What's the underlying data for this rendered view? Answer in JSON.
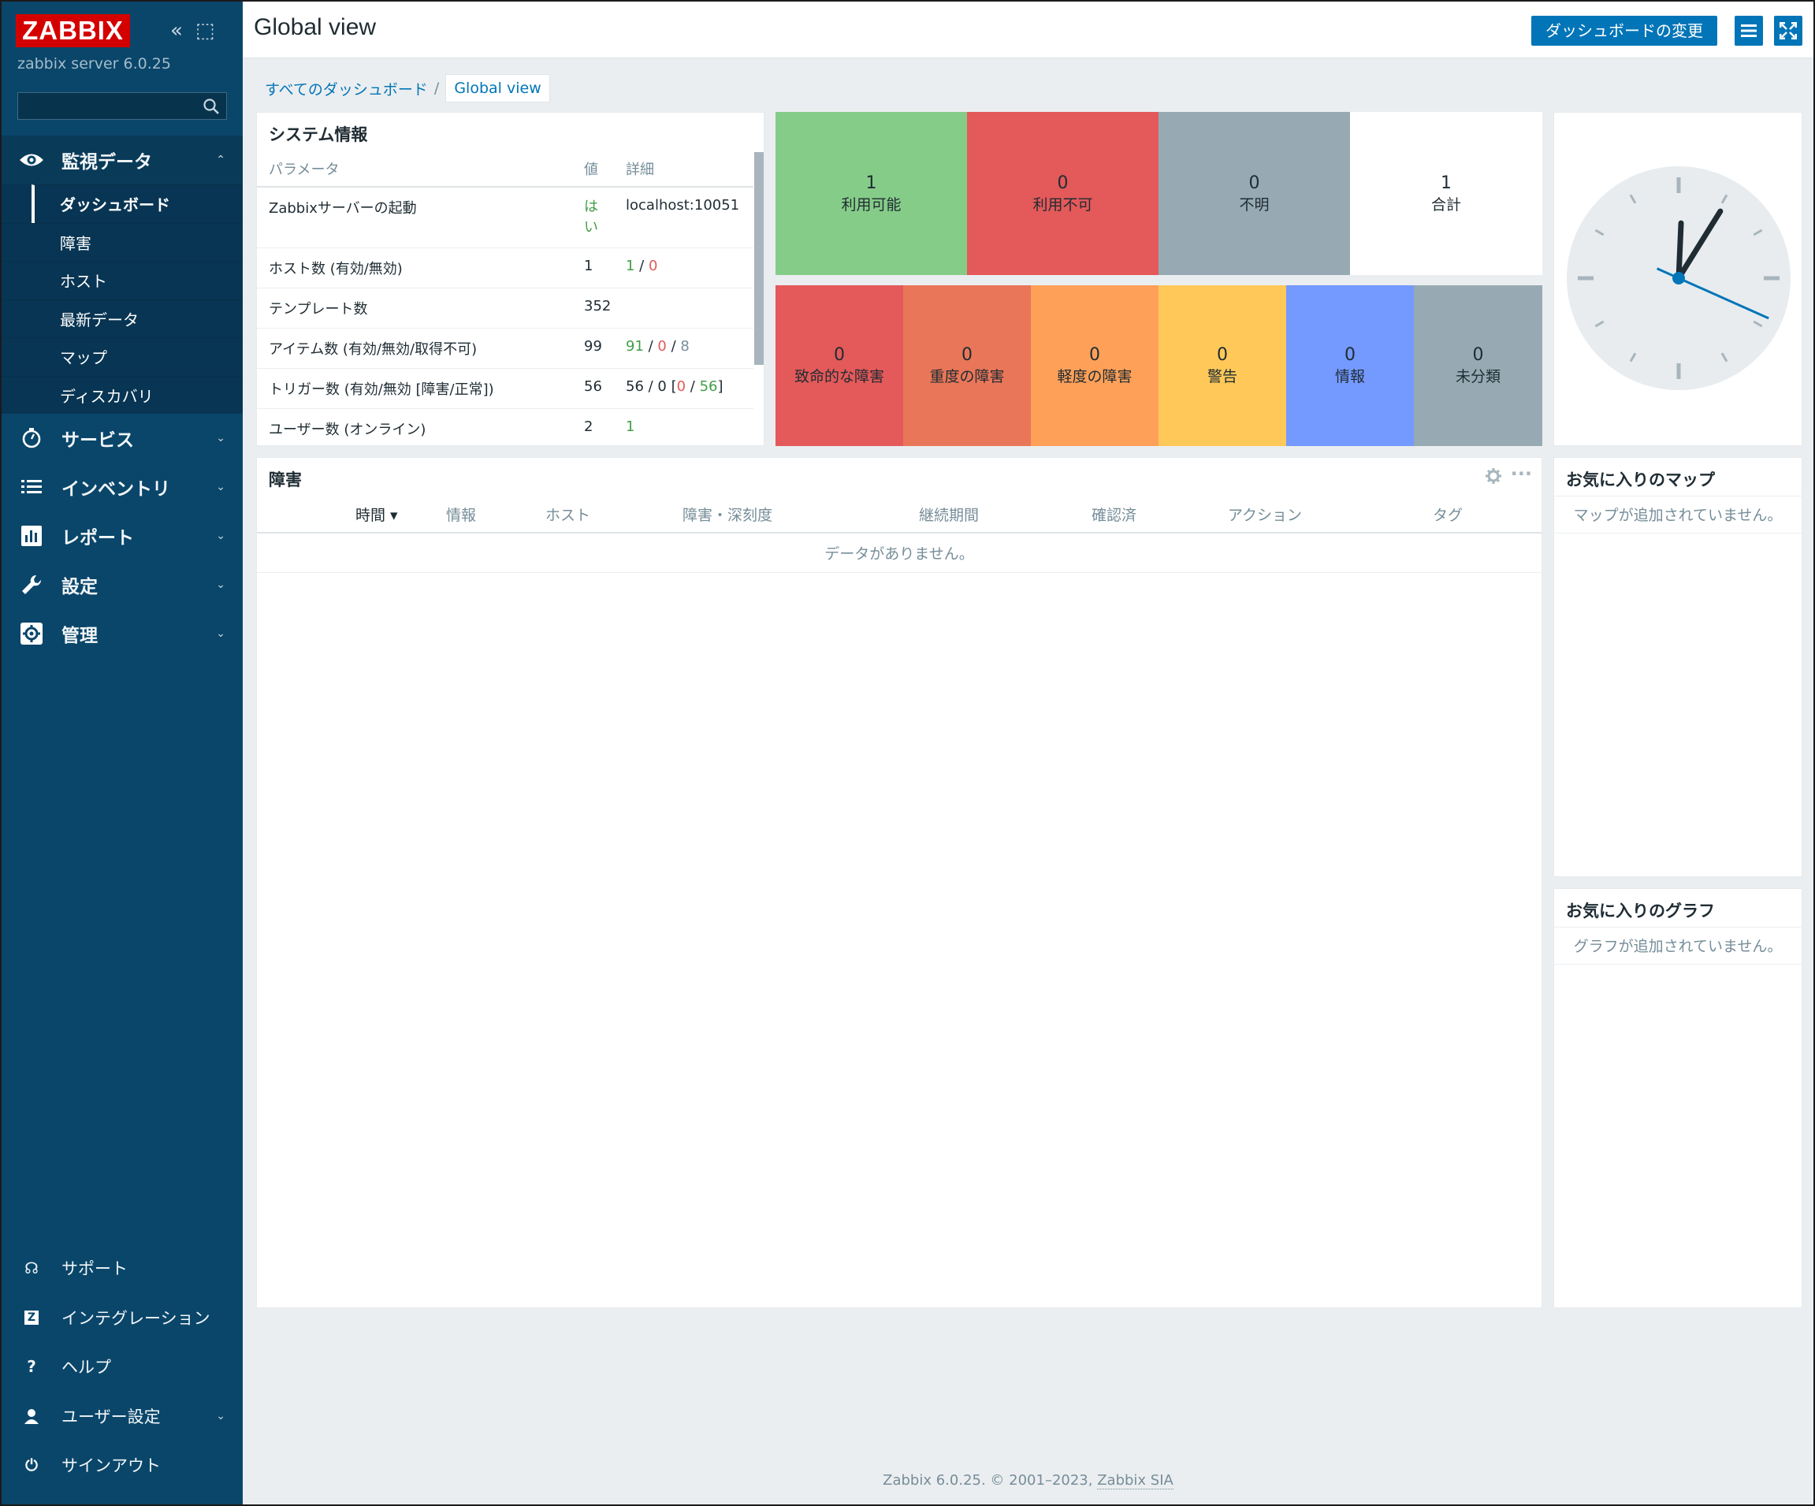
{
  "app": {
    "logo": "ZABBIX",
    "version": "zabbix server 6.0.25",
    "collapse_icon": "«",
    "kiosk_icon": "⬚"
  },
  "sidebar": {
    "menu": [
      {
        "label": "監視データ",
        "icon": "eye-icon",
        "chev": "⌃"
      },
      {
        "label": "サービス",
        "icon": "clock-icon",
        "chev": "⌄"
      },
      {
        "label": "インベントリ",
        "icon": "list-icon",
        "chev": "⌄"
      },
      {
        "label": "レポート",
        "icon": "report-icon",
        "chev": "⌄"
      },
      {
        "label": "設定",
        "icon": "wrench-icon",
        "chev": "⌄"
      },
      {
        "label": "管理",
        "icon": "gear-icon",
        "chev": "⌄"
      }
    ],
    "submenu": [
      "ダッシュボード",
      "障害",
      "ホスト",
      "最新データ",
      "マップ",
      "ディスカバリ"
    ],
    "bottom": [
      {
        "label": "サポート",
        "icon": "☊"
      },
      {
        "label": "インテグレーション",
        "icon": "Z"
      },
      {
        "label": "ヘルプ",
        "icon": "?"
      },
      {
        "label": "ユーザー設定",
        "icon": "●",
        "chev": "⌄"
      },
      {
        "label": "サインアウト",
        "icon": "⏻"
      }
    ]
  },
  "header": {
    "title": "Global view",
    "edit_button": "ダッシュボードの変更"
  },
  "breadcrumb": {
    "root": "すべてのダッシュボード",
    "sep": "/",
    "current": "Global view"
  },
  "sysinfo": {
    "title": "システム情報",
    "headers": [
      "パラメータ",
      "値",
      "詳細"
    ],
    "rows": [
      {
        "p": "Zabbixサーバーの起動",
        "v": "はい",
        "d": "localhost:10051"
      },
      {
        "p": "ホスト数 (有効/無効)",
        "v": "1",
        "d1": "1",
        "d2": "0"
      },
      {
        "p": "テンプレート数",
        "v": "352"
      },
      {
        "p": "アイテム数 (有効/無効/取得不可)",
        "v": "99",
        "a": "91",
        "b": "0",
        "c": "8"
      },
      {
        "p": "トリガー数 (有効/無効 [障害/正常])",
        "v": "56",
        "a": "56 / 0 [",
        "b": "0",
        "c": "56",
        "e": "]"
      },
      {
        "p": "ユーザー数 (オンライン)",
        "v": "2",
        "a": "1"
      }
    ]
  },
  "host_availability": [
    {
      "count": "1",
      "label": "利用可能",
      "color": "#86cc89"
    },
    {
      "count": "0",
      "label": "利用不可",
      "color": "#e45959"
    },
    {
      "count": "0",
      "label": "不明",
      "color": "#97aab3"
    },
    {
      "count": "1",
      "label": "合計",
      "color": "#ffffff"
    }
  ],
  "severity": [
    {
      "count": "0",
      "label": "致命的な障害",
      "color": "#e45959"
    },
    {
      "count": "0",
      "label": "重度の障害",
      "color": "#e97659"
    },
    {
      "count": "0",
      "label": "軽度の障害",
      "color": "#ffa059"
    },
    {
      "count": "0",
      "label": "警告",
      "color": "#ffc859"
    },
    {
      "count": "0",
      "label": "情報",
      "color": "#7499ff"
    },
    {
      "count": "0",
      "label": "未分類",
      "color": "#97aab3"
    }
  ],
  "problems": {
    "title": "障害",
    "columns": [
      "時間 ▾",
      "情報",
      "ホスト",
      "障害・深刻度",
      "継続期間",
      "確認済",
      "アクション",
      "タグ"
    ],
    "empty": "データがありません。",
    "more": "···"
  },
  "fav_maps": {
    "title": "お気に入りのマップ",
    "empty": "マップが追加されていません。"
  },
  "fav_graphs": {
    "title": "お気に入りのグラフ",
    "empty": "グラフが追加されていません。"
  },
  "clock": {
    "time": "12:05:19"
  },
  "footer": {
    "text": "Zabbix 6.0.25. © 2001–2023, ",
    "link": "Zabbix SIA"
  }
}
